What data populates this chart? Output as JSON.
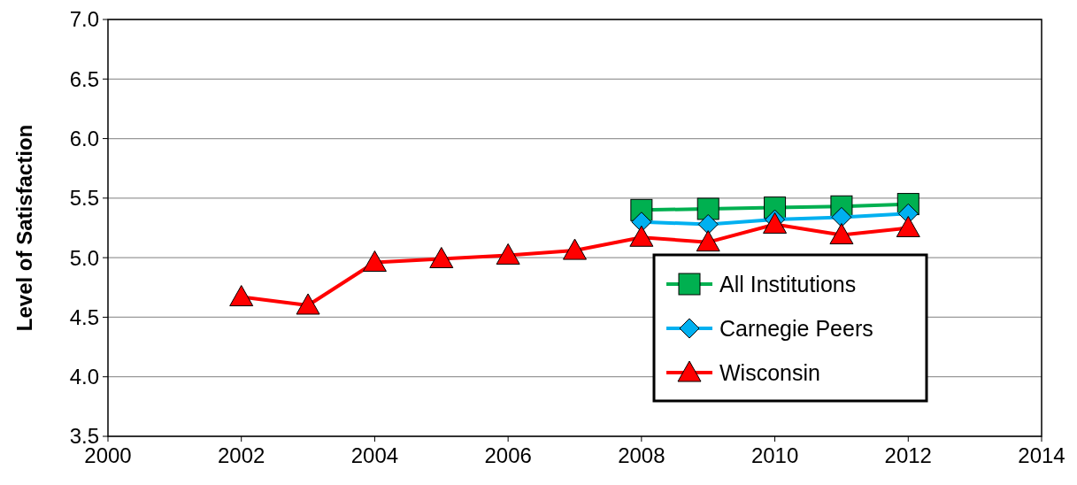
{
  "chart_data": {
    "type": "line",
    "ylabel": "Level of Satisfaction",
    "x": [
      2002,
      2003,
      2004,
      2005,
      2006,
      2007,
      2008,
      2009,
      2010,
      2011,
      2012
    ],
    "series": [
      {
        "name": "All Institutions",
        "color": "#00b050",
        "marker": "square",
        "values": [
          null,
          null,
          null,
          null,
          null,
          null,
          5.4,
          5.41,
          5.42,
          5.43,
          5.45
        ]
      },
      {
        "name": "Carnegie Peers",
        "color": "#00b0f0",
        "marker": "diamond",
        "values": [
          null,
          null,
          null,
          null,
          null,
          null,
          5.3,
          5.28,
          5.32,
          5.34,
          5.37
        ]
      },
      {
        "name": "Wisconsin",
        "color": "#ff0000",
        "marker": "triangle",
        "values": [
          4.67,
          4.6,
          4.96,
          4.99,
          5.02,
          5.06,
          5.17,
          5.13,
          5.28,
          5.19,
          5.25
        ]
      }
    ],
    "xlim": [
      2000,
      2014
    ],
    "xticks": [
      2000,
      2002,
      2004,
      2006,
      2008,
      2010,
      2012,
      2014
    ],
    "ylim": [
      3.5,
      7.0
    ],
    "yticks": [
      {
        "value": 3.5,
        "label": "3.5"
      },
      {
        "value": 4,
        "label": "4.0"
      },
      {
        "value": 4.5,
        "label": "4.5"
      },
      {
        "value": 5,
        "label": "5.0"
      },
      {
        "value": 5.5,
        "label": "5.5"
      },
      {
        "value": 6,
        "label": "6.0"
      },
      {
        "value": 6.5,
        "label": "6.5"
      },
      {
        "value": 7,
        "label": "7.0"
      }
    ],
    "grid": "y",
    "legend": "bottom right",
    "line_style": "solid"
  }
}
